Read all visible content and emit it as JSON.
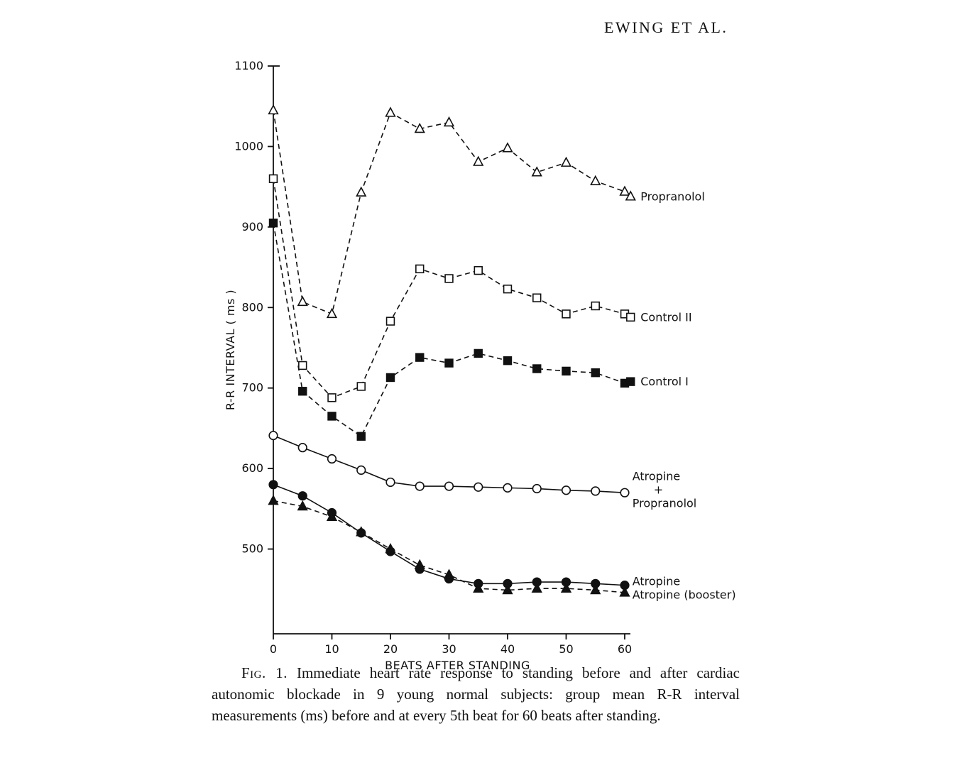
{
  "page": {
    "header": "EWING ET AL."
  },
  "caption": {
    "label": "Fig. 1.",
    "text": " Immediate heart rate response to standing before and after cardiac autonomic blockade in 9 young normal subjects: group mean R-R interval measurements (ms) before and at every 5th beat for 60 beats after standing."
  },
  "chart_data": {
    "type": "line",
    "title": "",
    "xlabel": "BEATS AFTER STANDING",
    "ylabel": "R-R INTERVAL ( ms )",
    "x": [
      0,
      5,
      10,
      15,
      20,
      25,
      30,
      35,
      40,
      45,
      50,
      55,
      60
    ],
    "x_ticks": [
      0,
      10,
      20,
      30,
      40,
      50,
      60
    ],
    "y_ticks": [
      500,
      600,
      700,
      800,
      900,
      1000,
      1100
    ],
    "xlim": [
      0,
      60
    ],
    "ylim": [
      400,
      1100
    ],
    "grid": false,
    "legend_position": "right-of-curves",
    "series": [
      {
        "name": "Propranolol",
        "marker": "triangle-open",
        "line": "dashed",
        "values": [
          1045,
          807,
          792,
          943,
          1042,
          1022,
          1030,
          981,
          998,
          968,
          980,
          957,
          944
        ],
        "label": {
          "text": "Propranolol",
          "x": 61.0,
          "y": 938,
          "marker": true
        }
      },
      {
        "name": "Control II",
        "marker": "square-open",
        "line": "dashed",
        "values": [
          960,
          728,
          688,
          702,
          783,
          848,
          836,
          846,
          823,
          812,
          792,
          802,
          792
        ],
        "label": {
          "text": "Control II",
          "x": 61.0,
          "y": 788,
          "marker": true
        }
      },
      {
        "name": "Control I",
        "marker": "square-filled",
        "line": "dashed",
        "values": [
          905,
          696,
          665,
          640,
          713,
          738,
          731,
          743,
          734,
          724,
          721,
          719,
          706
        ],
        "label": {
          "text": "Control I",
          "x": 61.0,
          "y": 708,
          "marker": true
        }
      },
      {
        "name": "Atropine + Propranolol",
        "marker": "circle-open",
        "line": "solid",
        "values": [
          641,
          626,
          612,
          598,
          583,
          578,
          578,
          577,
          576,
          575,
          573,
          572,
          570
        ],
        "label": {
          "lines": [
            "Atropine",
            "+",
            "Propranolol"
          ],
          "line_dx": [
            0,
            30,
            0
          ],
          "x": 61.3,
          "y": 590,
          "marker": false
        }
      },
      {
        "name": "Atropine",
        "marker": "circle-filled",
        "line": "solid",
        "values": [
          580,
          566,
          545,
          520,
          497,
          475,
          463,
          457,
          457,
          459,
          459,
          457,
          455
        ],
        "label": {
          "text": "Atropine",
          "x": 61.3,
          "y": 460,
          "marker": false
        }
      },
      {
        "name": "Atropine (booster)",
        "marker": "triangle-filled",
        "line": "dashed",
        "values": [
          560,
          553,
          540,
          521,
          500,
          480,
          468,
          451,
          449,
          451,
          451,
          449,
          446
        ],
        "label": {
          "text": "Atropine (booster)",
          "x": 61.3,
          "y": 443,
          "marker": false
        }
      }
    ],
    "colors": {
      "ink": "#111111",
      "paper": "#ffffff"
    }
  }
}
